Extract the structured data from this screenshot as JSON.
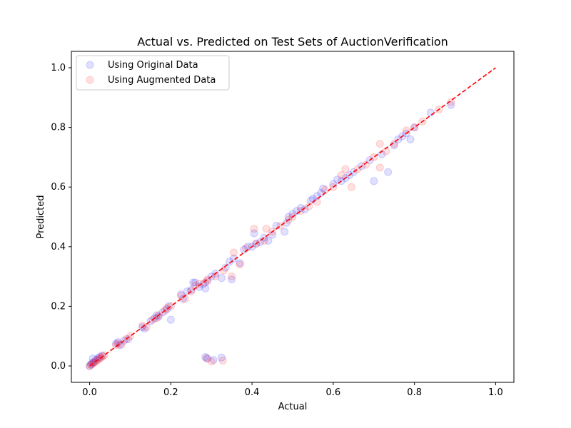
{
  "chart_data": {
    "type": "scatter",
    "title": "Actual vs. Predicted on Test Sets of AuctionVerification",
    "xlabel": "Actual",
    "ylabel": "Predicted",
    "xlim": [
      -0.045,
      1.045
    ],
    "ylim": [
      -0.055,
      1.055
    ],
    "xticks": [
      "0.0",
      "0.2",
      "0.4",
      "0.6",
      "0.8",
      "1.0"
    ],
    "yticks": [
      "0.0",
      "0.2",
      "0.4",
      "0.6",
      "0.8",
      "1.0"
    ],
    "grid": false,
    "legend_position": "top-left",
    "reference_line": {
      "x": [
        0,
        1
      ],
      "y": [
        0,
        1
      ],
      "color": "#ff0000",
      "style": "dashed"
    },
    "series": [
      {
        "name": "Using Original Data",
        "color": "#0000ff",
        "alpha": 0.12,
        "points": [
          [
            0.0,
            0.0
          ],
          [
            0.003,
            0.005
          ],
          [
            0.006,
            0.01
          ],
          [
            0.008,
            0.025
          ],
          [
            0.01,
            0.012
          ],
          [
            0.015,
            0.02
          ],
          [
            0.02,
            0.025
          ],
          [
            0.025,
            0.03
          ],
          [
            0.03,
            0.035
          ],
          [
            0.065,
            0.075
          ],
          [
            0.07,
            0.08
          ],
          [
            0.075,
            0.07
          ],
          [
            0.085,
            0.085
          ],
          [
            0.095,
            0.09
          ],
          [
            0.13,
            0.13
          ],
          [
            0.135,
            0.125
          ],
          [
            0.15,
            0.15
          ],
          [
            0.16,
            0.16
          ],
          [
            0.165,
            0.17
          ],
          [
            0.17,
            0.165
          ],
          [
            0.18,
            0.18
          ],
          [
            0.19,
            0.19
          ],
          [
            0.195,
            0.2
          ],
          [
            0.2,
            0.155
          ],
          [
            0.225,
            0.24
          ],
          [
            0.23,
            0.225
          ],
          [
            0.24,
            0.25
          ],
          [
            0.25,
            0.255
          ],
          [
            0.255,
            0.28
          ],
          [
            0.26,
            0.28
          ],
          [
            0.27,
            0.265
          ],
          [
            0.28,
            0.275
          ],
          [
            0.285,
            0.26
          ],
          [
            0.29,
            0.285
          ],
          [
            0.285,
            0.03
          ],
          [
            0.29,
            0.025
          ],
          [
            0.305,
            0.02
          ],
          [
            0.325,
            0.028
          ],
          [
            0.3,
            0.3
          ],
          [
            0.31,
            0.31
          ],
          [
            0.325,
            0.295
          ],
          [
            0.335,
            0.33
          ],
          [
            0.345,
            0.35
          ],
          [
            0.35,
            0.29
          ],
          [
            0.355,
            0.36
          ],
          [
            0.37,
            0.345
          ],
          [
            0.38,
            0.39
          ],
          [
            0.39,
            0.4
          ],
          [
            0.4,
            0.4
          ],
          [
            0.405,
            0.445
          ],
          [
            0.41,
            0.41
          ],
          [
            0.42,
            0.415
          ],
          [
            0.43,
            0.43
          ],
          [
            0.44,
            0.42
          ],
          [
            0.45,
            0.44
          ],
          [
            0.46,
            0.47
          ],
          [
            0.48,
            0.45
          ],
          [
            0.485,
            0.48
          ],
          [
            0.49,
            0.5
          ],
          [
            0.5,
            0.51
          ],
          [
            0.51,
            0.52
          ],
          [
            0.52,
            0.53
          ],
          [
            0.53,
            0.525
          ],
          [
            0.545,
            0.555
          ],
          [
            0.55,
            0.56
          ],
          [
            0.56,
            0.57
          ],
          [
            0.57,
            0.58
          ],
          [
            0.575,
            0.595
          ],
          [
            0.6,
            0.61
          ],
          [
            0.61,
            0.625
          ],
          [
            0.62,
            0.62
          ],
          [
            0.63,
            0.63
          ],
          [
            0.64,
            0.64
          ],
          [
            0.65,
            0.65
          ],
          [
            0.67,
            0.67
          ],
          [
            0.69,
            0.69
          ],
          [
            0.7,
            0.62
          ],
          [
            0.72,
            0.71
          ],
          [
            0.735,
            0.65
          ],
          [
            0.75,
            0.74
          ],
          [
            0.76,
            0.76
          ],
          [
            0.77,
            0.77
          ],
          [
            0.78,
            0.78
          ],
          [
            0.79,
            0.76
          ],
          [
            0.8,
            0.8
          ],
          [
            0.84,
            0.85
          ],
          [
            0.89,
            0.875
          ]
        ]
      },
      {
        "name": "Using Augmented Data",
        "color": "#ff0000",
        "alpha": 0.12,
        "points": [
          [
            0.0,
            0.0
          ],
          [
            0.004,
            0.004
          ],
          [
            0.008,
            0.008
          ],
          [
            0.012,
            0.012
          ],
          [
            0.016,
            0.016
          ],
          [
            0.02,
            0.02
          ],
          [
            0.024,
            0.024
          ],
          [
            0.028,
            0.028
          ],
          [
            0.032,
            0.032
          ],
          [
            0.036,
            0.036
          ],
          [
            0.065,
            0.07
          ],
          [
            0.07,
            0.075
          ],
          [
            0.078,
            0.072
          ],
          [
            0.09,
            0.09
          ],
          [
            0.1,
            0.1
          ],
          [
            0.13,
            0.135
          ],
          [
            0.14,
            0.13
          ],
          [
            0.155,
            0.155
          ],
          [
            0.165,
            0.16
          ],
          [
            0.17,
            0.17
          ],
          [
            0.185,
            0.185
          ],
          [
            0.19,
            0.195
          ],
          [
            0.2,
            0.2
          ],
          [
            0.225,
            0.235
          ],
          [
            0.235,
            0.225
          ],
          [
            0.25,
            0.25
          ],
          [
            0.26,
            0.27
          ],
          [
            0.27,
            0.275
          ],
          [
            0.285,
            0.28
          ],
          [
            0.29,
            0.29
          ],
          [
            0.288,
            0.025
          ],
          [
            0.3,
            0.015
          ],
          [
            0.328,
            0.018
          ],
          [
            0.31,
            0.3
          ],
          [
            0.33,
            0.32
          ],
          [
            0.35,
            0.3
          ],
          [
            0.355,
            0.38
          ],
          [
            0.37,
            0.34
          ],
          [
            0.385,
            0.395
          ],
          [
            0.405,
            0.46
          ],
          [
            0.41,
            0.41
          ],
          [
            0.43,
            0.42
          ],
          [
            0.435,
            0.46
          ],
          [
            0.45,
            0.45
          ],
          [
            0.47,
            0.47
          ],
          [
            0.49,
            0.49
          ],
          [
            0.5,
            0.5
          ],
          [
            0.52,
            0.52
          ],
          [
            0.54,
            0.535
          ],
          [
            0.56,
            0.55
          ],
          [
            0.58,
            0.59
          ],
          [
            0.6,
            0.6
          ],
          [
            0.62,
            0.64
          ],
          [
            0.63,
            0.66
          ],
          [
            0.645,
            0.6
          ],
          [
            0.66,
            0.66
          ],
          [
            0.68,
            0.675
          ],
          [
            0.7,
            0.7
          ],
          [
            0.715,
            0.745
          ],
          [
            0.715,
            0.665
          ],
          [
            0.73,
            0.72
          ],
          [
            0.75,
            0.745
          ],
          [
            0.78,
            0.79
          ],
          [
            0.8,
            0.8
          ],
          [
            0.82,
            0.82
          ],
          [
            0.86,
            0.86
          ],
          [
            0.89,
            0.885
          ]
        ]
      }
    ]
  }
}
